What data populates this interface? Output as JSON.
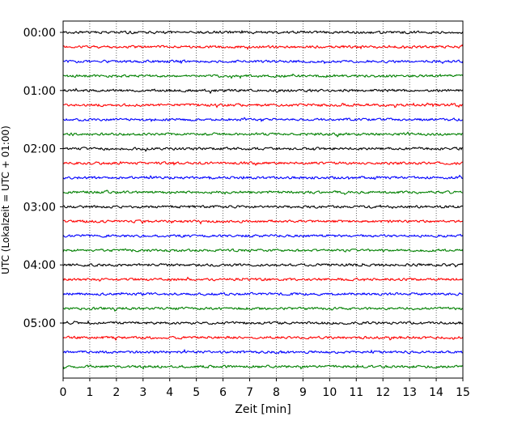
{
  "chart_data": {
    "type": "line",
    "title": "",
    "xlabel": "Zeit  [min]",
    "ylabel": "UTC (Lokalzeit = UTC + 01:00)",
    "xlim": [
      0,
      15
    ],
    "x_ticks": [
      0,
      1,
      2,
      3,
      4,
      5,
      6,
      7,
      8,
      9,
      10,
      11,
      12,
      13,
      14,
      15
    ],
    "x_tick_labels": [
      "0",
      "1",
      "2",
      "3",
      "4",
      "5",
      "6",
      "7",
      "8",
      "9",
      "10",
      "11",
      "12",
      "13",
      "14",
      "15"
    ],
    "y_tick_labels": [
      "00:00",
      "01:00",
      "02:00",
      "03:00",
      "04:00",
      "05:00"
    ],
    "minutes_per_row": 15,
    "row_count": 24,
    "row_color_cycle": [
      "#000000",
      "#ff0000",
      "#0000ff",
      "#008000"
    ],
    "grid": "vertical dotted at each minute",
    "legend": "none"
  }
}
